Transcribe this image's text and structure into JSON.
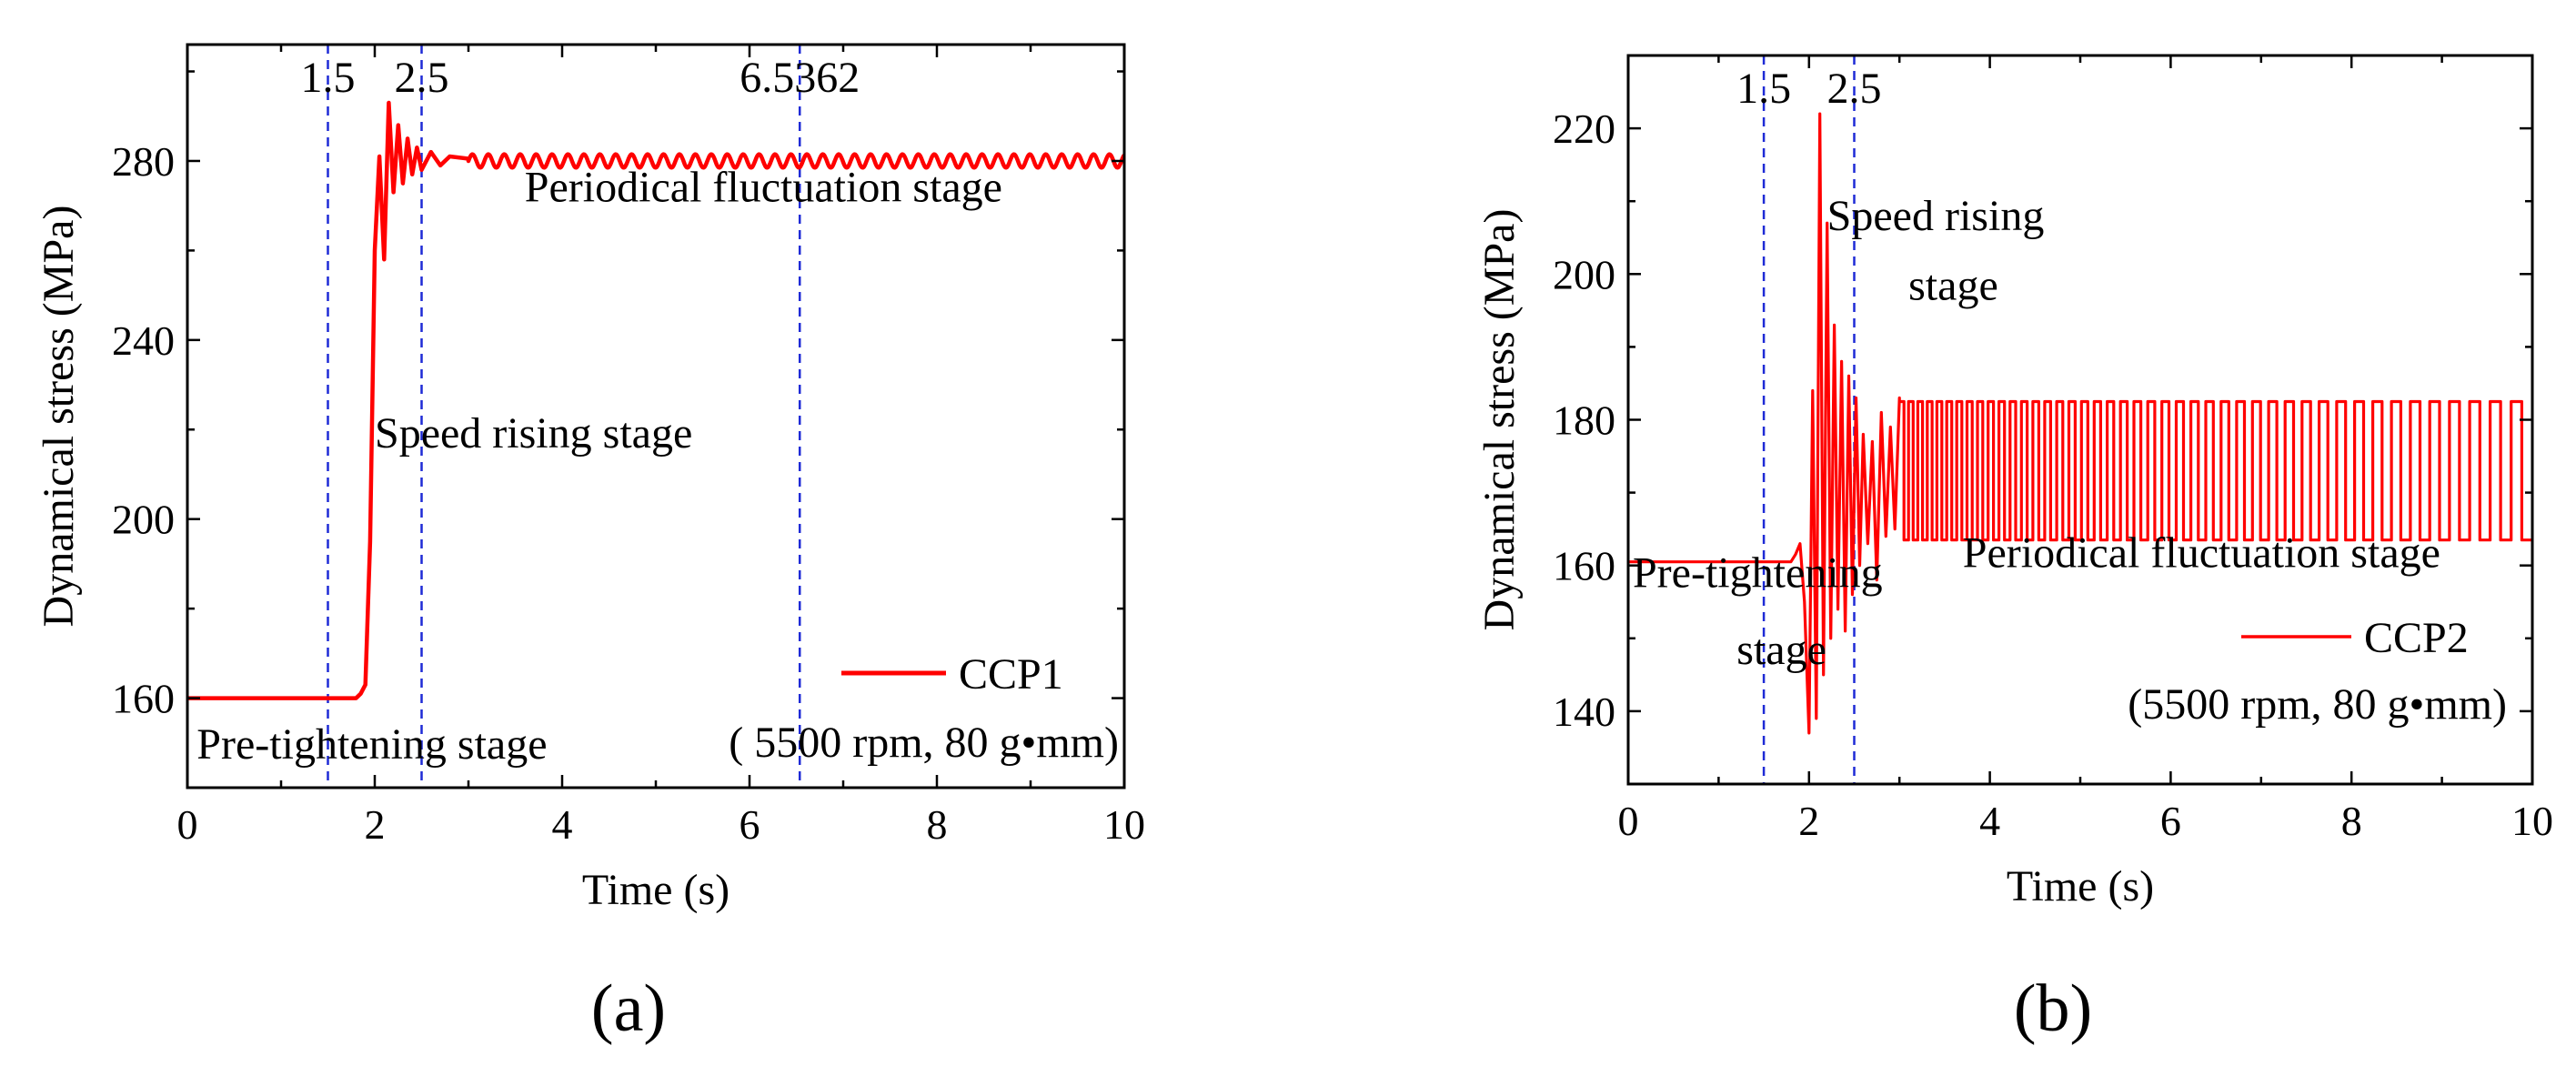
{
  "chart_data": [
    {
      "type": "line",
      "panel_label": "(a)",
      "panel_letter": "a",
      "xlabel": "Time (s)",
      "ylabel": "Dynamical stress (MPa)",
      "xlim": [
        0,
        10
      ],
      "ylim": [
        140,
        306
      ],
      "xticks": [
        0,
        2,
        4,
        6,
        8,
        10
      ],
      "yticks": [
        160,
        200,
        240,
        280
      ],
      "vlines": [
        {
          "x": 1.5,
          "label": "1.5"
        },
        {
          "x": 2.5,
          "label": "2.5"
        },
        {
          "x": 6.5362,
          "label": "6.5362"
        }
      ],
      "stages": [
        {
          "text": "Pre-tightening stage",
          "x": 0.1,
          "y": 146.5
        },
        {
          "text": "Speed rising stage",
          "x": 2.0,
          "y": 216
        },
        {
          "text": "Periodical fluctuation stage",
          "x": 3.6,
          "y": 271
        }
      ],
      "legend": {
        "label": "CCP1",
        "position": "bottom-right"
      },
      "note": "( 5500 rpm, 80 g•mm)",
      "series": [
        {
          "name": "CCP1",
          "color": "#ff0000",
          "x": [
            0,
            1.8,
            1.85,
            1.9,
            1.95,
            2.0,
            2.05,
            2.1,
            2.15,
            2.2,
            2.25,
            2.3,
            2.35,
            2.4,
            2.45,
            2.5,
            2.6,
            2.7,
            2.8,
            3.0,
            3.5,
            4.0,
            5.0,
            6.0,
            7.0,
            8.0,
            9.0,
            10.0
          ],
          "y": [
            160,
            160,
            161,
            163,
            195,
            260,
            281,
            258,
            293,
            273,
            288,
            275,
            285,
            277,
            283,
            278,
            282,
            279,
            281,
            280.5,
            280,
            280,
            280,
            280,
            280,
            280,
            280,
            280
          ],
          "ripple_from": 3.0,
          "ripple_amplitude": 1.5,
          "ripple_period": 0.17
        }
      ]
    },
    {
      "type": "line",
      "panel_label": "(b)",
      "panel_letter": "b",
      "xlabel": "Time (s)",
      "ylabel": "Dynamical stress (MPa)",
      "xlim": [
        0,
        10
      ],
      "ylim": [
        130,
        230
      ],
      "xticks": [
        0,
        2,
        4,
        6,
        8,
        10
      ],
      "yticks": [
        140,
        160,
        180,
        200,
        220
      ],
      "vlines": [
        {
          "x": 1.5,
          "label": "1.5"
        },
        {
          "x": 2.5,
          "label": "2.5"
        }
      ],
      "stages": [
        {
          "text": "Pre-tightening",
          "x": 0.05,
          "y": 157
        },
        {
          "text": "stage",
          "x": 1.2,
          "y": 146.5
        },
        {
          "text": "Speed rising",
          "x": 2.2,
          "y": 206
        },
        {
          "text": "stage",
          "x": 3.1,
          "y": 196.5
        },
        {
          "text": "Periodical fluctuation stage",
          "x": 3.7,
          "y": 159.8
        }
      ],
      "legend": {
        "label": "CCP2",
        "position": "bottom-right"
      },
      "note": "(5500 rpm, 80 g•mm)",
      "series": [
        {
          "name": "CCP2",
          "color": "#ff0000",
          "x": [
            0,
            1.8,
            1.85,
            1.9,
            1.95,
            2.0,
            2.04,
            2.08,
            2.12,
            2.16,
            2.2,
            2.24,
            2.28,
            2.32,
            2.36,
            2.4,
            2.44,
            2.48,
            2.52,
            2.56,
            2.6,
            2.65,
            2.7,
            2.75,
            2.8,
            2.85,
            2.9,
            2.95,
            3.0
          ],
          "y": [
            160.5,
            160.5,
            161.5,
            163,
            155,
            137,
            184,
            139,
            222,
            145,
            207,
            150,
            193,
            154,
            188,
            151,
            186,
            156,
            183,
            160,
            178,
            163,
            177,
            158,
            181,
            164,
            179,
            165,
            183
          ],
          "square_from": 3.0,
          "square_high": 182.5,
          "square_low": 163.5,
          "square_half_period_start": 0.05,
          "square_half_period_end": 0.12
        }
      ]
    }
  ]
}
